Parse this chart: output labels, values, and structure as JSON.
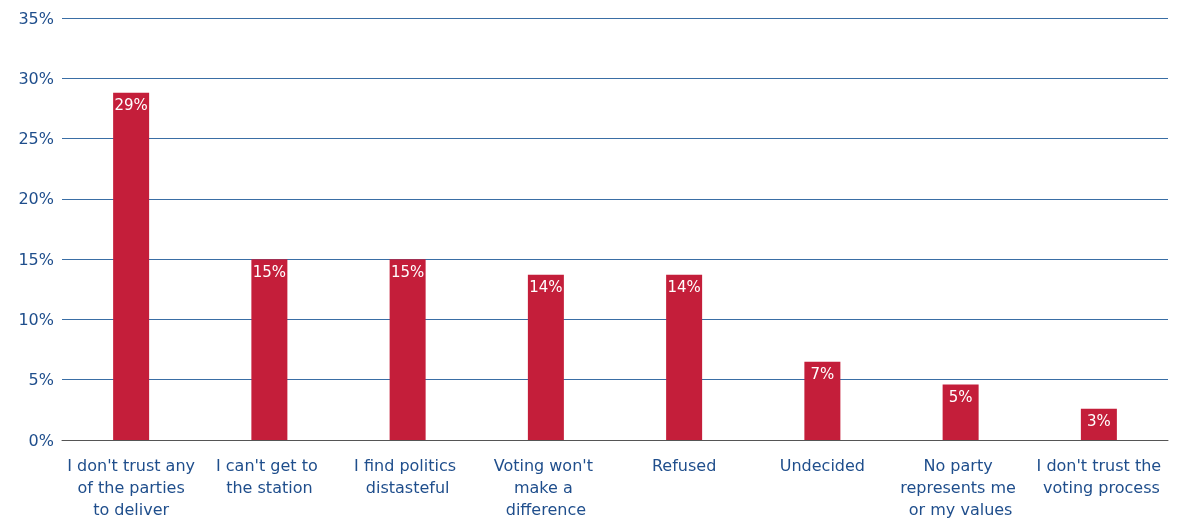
{
  "chart_data": {
    "type": "bar",
    "categories": [
      "I don't trust any of the parties to deliver",
      "I can't get to the station",
      "I find politics distasteful",
      "Voting won't make a difference",
      "Refused",
      "Undecided",
      "No party represents me or my values",
      "I don't trust the voting process"
    ],
    "values": [
      28.8,
      15,
      15,
      13.7,
      13.7,
      6.5,
      4.6,
      2.6
    ],
    "value_labels": [
      "29%",
      "15%",
      "15%",
      "14%",
      "14%",
      "7%",
      "5%",
      "3%"
    ],
    "color": "#c41e3a",
    "ylim": [
      0,
      35
    ],
    "yticks": [
      {
        "value": 0,
        "label": "0%"
      },
      {
        "value": 5,
        "label": "5%"
      },
      {
        "value": 10,
        "label": "10%"
      },
      {
        "value": 15,
        "label": "15%"
      },
      {
        "value": 20,
        "label": "20%"
      },
      {
        "value": 25,
        "label": "25%"
      },
      {
        "value": 30,
        "label": "30%"
      },
      {
        "value": 35,
        "label": "35%"
      }
    ],
    "grid": "y"
  }
}
